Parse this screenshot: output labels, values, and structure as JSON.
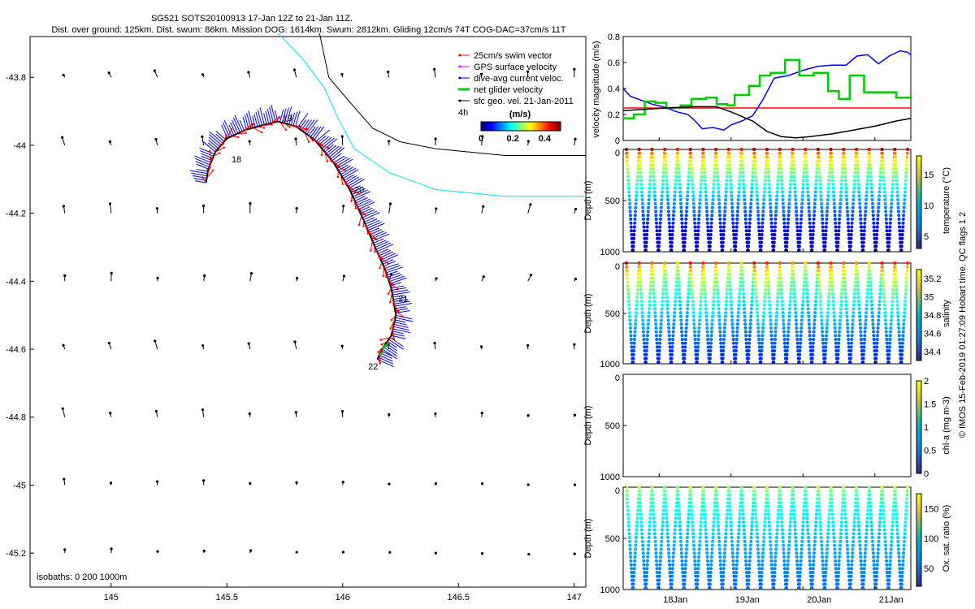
{
  "header": {
    "title": "SG521 SOTS20100913 17-Jan 12Z to 21-Jan 11Z.",
    "subtitle": "Dist. over ground: 125km. Dist. swum: 86km. Mission DOG: 1614km. Swum: 2812km. Gliding 12cm/s 74T COG-DAC=37cm/s 11T"
  },
  "footer_note": "© IMOS 15-Feb-2019 01:27:09 Hobart time. QC flags 1  2",
  "colors": {
    "swim_vector": "#ff0000",
    "gps_velocity": "#ff00ff",
    "dac": "#0000ff",
    "net_glider": "#00cc00",
    "sfc_geo": "#000000",
    "isobath_200": "#00e5ee",
    "isobath_1000": "#000000",
    "dog_line": "#ff0000"
  },
  "chart_data": [
    {
      "type": "scatter",
      "name": "map",
      "xlim": [
        144.65,
        147.05
      ],
      "ylim": [
        -45.3,
        -43.68
      ],
      "xticks": [
        145,
        145.5,
        146,
        146.5,
        147
      ],
      "xtick_labels": [
        "145",
        "145.5",
        "146",
        "146.5",
        "147"
      ],
      "yticks": [
        -43.8,
        -44,
        -44.2,
        -44.4,
        -44.6,
        -44.8,
        -45,
        -45.2
      ],
      "ytick_labels": [
        "-43.8",
        "-44",
        "-44.2",
        "-44.4",
        "-44.6",
        "-44.8",
        "-45",
        "-45.2"
      ],
      "isobaths_label": "isobaths: 0   200   1000m",
      "isobath_200": [
        [
          145.72,
          -43.67
        ],
        [
          145.82,
          -43.74
        ],
        [
          145.92,
          -43.83
        ],
        [
          145.98,
          -43.92
        ],
        [
          146.05,
          -44.01
        ],
        [
          146.2,
          -44.08
        ],
        [
          146.4,
          -44.13
        ],
        [
          146.7,
          -44.15
        ],
        [
          147.05,
          -44.15
        ]
      ],
      "isobath_1000": [
        [
          145.9,
          -43.67
        ],
        [
          145.94,
          -43.8
        ],
        [
          146.04,
          -43.88
        ],
        [
          146.13,
          -43.95
        ],
        [
          146.25,
          -43.99
        ],
        [
          146.4,
          -44.01
        ],
        [
          146.7,
          -44.03
        ],
        [
          147.05,
          -44.03
        ]
      ],
      "track": [
        [
          145.41,
          -44.11
        ],
        [
          145.42,
          -44.07
        ],
        [
          145.45,
          -44.02
        ],
        [
          145.5,
          -43.98
        ],
        [
          145.58,
          -43.955
        ],
        [
          145.66,
          -43.94
        ],
        [
          145.72,
          -43.93
        ],
        [
          145.8,
          -43.945
        ],
        [
          145.88,
          -43.985
        ],
        [
          145.96,
          -44.05
        ],
        [
          146.03,
          -44.13
        ],
        [
          146.09,
          -44.22
        ],
        [
          146.14,
          -44.3
        ],
        [
          146.18,
          -44.36
        ],
        [
          146.21,
          -44.42
        ],
        [
          146.23,
          -44.5
        ],
        [
          146.21,
          -44.56
        ],
        [
          146.17,
          -44.6
        ],
        [
          146.15,
          -44.63
        ]
      ],
      "track_labels": [
        {
          "text": "18",
          "lon": 145.52,
          "lat": -44.05
        },
        {
          "text": "19",
          "lon": 145.74,
          "lat": -43.93
        },
        {
          "text": "20",
          "lon": 146.05,
          "lat": -44.14
        },
        {
          "text": "21",
          "lon": 146.24,
          "lat": -44.46
        },
        {
          "text": "22",
          "lon": 146.11,
          "lat": -44.66
        }
      ],
      "grid_lons": [
        144.8,
        145.0,
        145.2,
        145.4,
        145.6,
        145.8,
        146.0,
        146.2,
        146.4,
        146.6,
        146.8,
        147.0
      ],
      "grid_lats": [
        -43.8,
        -44.0,
        -44.2,
        -44.4,
        -44.6,
        -44.8,
        -45.0,
        -45.2
      ],
      "legend": [
        {
          "label": "25cm/s swim vector",
          "color": "#ff0000"
        },
        {
          "label": "GPS surface velocity",
          "color": "#ff00ff"
        },
        {
          "label": "dive-avg current veloc.",
          "color": "#0000ff"
        },
        {
          "label": "net glider velocity",
          "color": "#00cc00"
        },
        {
          "label": "sfc geo. vel. 21-Jan-2011",
          "color": "#000000"
        }
      ],
      "legend_extra": "4h",
      "colorbar": {
        "unit": "(m/s)",
        "ticks": [
          "0",
          "0.2",
          "0.4"
        ],
        "range": [
          0,
          0.5
        ]
      }
    },
    {
      "type": "line",
      "name": "velocity",
      "ylabel": "velocity magnitude (m/s)",
      "ylim": [
        0,
        0.8
      ],
      "yticks": [
        0,
        0.2,
        0.4,
        0.6,
        0.8
      ],
      "ytick_labels": [
        "0",
        "0.2",
        "0.4",
        "0.6",
        "0.8"
      ],
      "xlim": [
        17.5,
        21.5
      ],
      "dog_value": 0.25,
      "series": [
        {
          "name": "dive-avg current",
          "color": "#0000ff",
          "style": "line",
          "x": [
            17.5,
            17.6,
            17.75,
            17.9,
            18.05,
            18.15,
            18.25,
            18.4,
            18.5,
            18.6,
            18.75,
            18.9,
            19.0,
            19.15,
            19.3,
            19.45,
            19.6,
            19.8,
            20.0,
            20.2,
            20.4,
            20.6,
            20.75,
            20.9,
            21.05,
            21.2,
            21.35,
            21.45,
            21.5
          ],
          "y": [
            0.4,
            0.34,
            0.31,
            0.28,
            0.26,
            0.24,
            0.22,
            0.2,
            0.15,
            0.09,
            0.1,
            0.08,
            0.12,
            0.15,
            0.19,
            0.32,
            0.48,
            0.5,
            0.54,
            0.57,
            0.58,
            0.58,
            0.65,
            0.66,
            0.59,
            0.65,
            0.69,
            0.68,
            0.66
          ]
        },
        {
          "name": "net glider",
          "color": "#00cc00",
          "style": "step",
          "x": [
            17.5,
            17.65,
            17.8,
            17.95,
            18.1,
            18.3,
            18.45,
            18.65,
            18.8,
            18.95,
            19.05,
            19.25,
            19.4,
            19.55,
            19.75,
            19.95,
            20.15,
            20.35,
            20.5,
            20.65,
            20.85,
            21.05,
            21.3,
            21.5
          ],
          "y": [
            0.17,
            0.2,
            0.3,
            0.29,
            0.25,
            0.27,
            0.32,
            0.33,
            0.28,
            0.27,
            0.35,
            0.42,
            0.5,
            0.52,
            0.62,
            0.5,
            0.52,
            0.38,
            0.32,
            0.5,
            0.37,
            0.37,
            0.33,
            0.35
          ]
        },
        {
          "name": "sfc geo",
          "color": "#000000",
          "style": "line",
          "x": [
            17.5,
            17.8,
            18.1,
            18.5,
            18.8,
            19.0,
            19.3,
            19.5,
            19.7,
            19.9,
            20.1,
            20.4,
            20.7,
            21.0,
            21.3,
            21.5
          ],
          "y": [
            0.23,
            0.24,
            0.25,
            0.26,
            0.26,
            0.22,
            0.15,
            0.07,
            0.03,
            0.02,
            0.03,
            0.05,
            0.08,
            0.11,
            0.15,
            0.17
          ]
        }
      ]
    },
    {
      "type": "scatter",
      "name": "temperature",
      "ylabel": "Depth (m)",
      "cblabel": "temperature (°C)",
      "yticks": [
        "0",
        "500",
        "1000"
      ],
      "cbticks": [
        "15",
        "10",
        "5"
      ],
      "cb_range": [
        3,
        18
      ],
      "cb_tick_values": [
        15,
        10,
        5
      ],
      "ymax_depth": 1000,
      "profile_top": [
        17.5,
        15.5
      ],
      "profile_bottom": 3.5,
      "cycles": 22
    },
    {
      "type": "scatter",
      "name": "salinity",
      "ylabel": "Depth (m)",
      "cblabel": "salinity",
      "yticks": [
        "0",
        "500",
        "1000"
      ],
      "cbticks": [
        "35.2",
        "35",
        "34.8",
        "34.6",
        "34.4"
      ],
      "cb_range": [
        34.3,
        35.3
      ],
      "cb_tick_values": [
        35.2,
        35.0,
        34.8,
        34.6,
        34.4
      ],
      "ymax_depth": 1000,
      "profile_top": [
        35.2,
        34.9
      ],
      "profile_bottom": 34.45,
      "cycles": 22
    },
    {
      "type": "scatter",
      "name": "chlorophyll",
      "ylabel": "Depth (m)",
      "cblabel": "chl-a (mg m-3)",
      "yticks": [
        "0",
        "500",
        "1000"
      ],
      "cbticks": [
        "2",
        "1.5",
        "1",
        "0.5",
        "0"
      ],
      "cb_range": [
        0,
        2
      ],
      "cb_tick_values": [
        2,
        1.5,
        1,
        0.5,
        0
      ],
      "ymax_depth": 1000,
      "empty": true
    },
    {
      "type": "scatter",
      "name": "oxygen",
      "ylabel": "Depth (m)",
      "cblabel": "Ox. sat. ratio (%)",
      "yticks": [
        "0",
        "500",
        "1000"
      ],
      "cbticks": [
        "150",
        "100",
        "50"
      ],
      "cb_range": [
        20,
        175
      ],
      "cb_tick_values": [
        150,
        100,
        50
      ],
      "ymax_depth": 1000,
      "profile_top": [
        110,
        95
      ],
      "profile_bottom": 55,
      "cycles": 22,
      "xticks": [
        "18Jan",
        "19Jan",
        "20Jan",
        "21Jan"
      ],
      "xtick_days": [
        18,
        19,
        20,
        21
      ],
      "xlim": [
        17.5,
        21.5
      ]
    }
  ]
}
